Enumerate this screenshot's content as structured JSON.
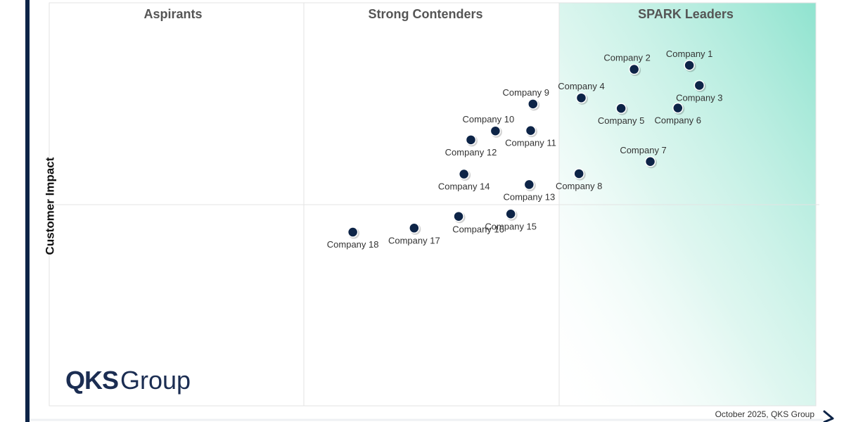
{
  "chart_data": {
    "type": "scatter",
    "title": "",
    "xlabel": "",
    "ylabel": "Customer Impact",
    "quadrants": {
      "top": [
        "Aspirants",
        "Strong Contenders",
        "SPARK Leaders"
      ]
    },
    "xlim": [
      0,
      100
    ],
    "ylim": [
      0,
      100
    ],
    "points": [
      {
        "name": "Company 1",
        "x": 83.5,
        "y": 84.5,
        "label_pos": "top"
      },
      {
        "name": "Company 2",
        "x": 76.3,
        "y": 83.5,
        "label_pos": "top-left"
      },
      {
        "name": "Company 3",
        "x": 84.8,
        "y": 79.5,
        "label_pos": "bottom"
      },
      {
        "name": "Company 4",
        "x": 69.4,
        "y": 76.4,
        "label_pos": "top"
      },
      {
        "name": "Company 5",
        "x": 74.6,
        "y": 73.8,
        "label_pos": "bottom"
      },
      {
        "name": "Company 6",
        "x": 82.0,
        "y": 73.9,
        "label_pos": "bottom"
      },
      {
        "name": "Company 7",
        "x": 78.4,
        "y": 60.6,
        "label_pos": "top-left"
      },
      {
        "name": "Company 8",
        "x": 69.1,
        "y": 57.6,
        "label_pos": "bottom"
      },
      {
        "name": "Company 9",
        "x": 63.1,
        "y": 74.9,
        "label_pos": "top-left"
      },
      {
        "name": "Company 10",
        "x": 58.2,
        "y": 68.2,
        "label_pos": "top-left"
      },
      {
        "name": "Company 11",
        "x": 62.8,
        "y": 68.3,
        "label_pos": "bottom"
      },
      {
        "name": "Company 12",
        "x": 55.0,
        "y": 66.0,
        "label_pos": "bottom"
      },
      {
        "name": "Company 13",
        "x": 62.6,
        "y": 54.9,
        "label_pos": "bottom"
      },
      {
        "name": "Company 14",
        "x": 54.1,
        "y": 57.5,
        "label_pos": "bottom"
      },
      {
        "name": "Company 15",
        "x": 60.2,
        "y": 47.6,
        "label_pos": "bottom"
      },
      {
        "name": "Company 16",
        "x": 53.4,
        "y": 47.0,
        "label_pos": "bottom-right"
      },
      {
        "name": "Company 17",
        "x": 47.6,
        "y": 44.1,
        "label_pos": "bottom"
      },
      {
        "name": "Company 18",
        "x": 39.6,
        "y": 43.1,
        "label_pos": "bottom"
      }
    ]
  },
  "branding": {
    "logo_bold": "QKS",
    "logo_regular": "Group"
  },
  "footer": {
    "credit": "October 2025, QKS Group"
  },
  "colors": {
    "point": "#0d2447",
    "leader_gradient": "#8fe3cf",
    "axis": "#0d2447",
    "grid": "#e3e3e3"
  }
}
